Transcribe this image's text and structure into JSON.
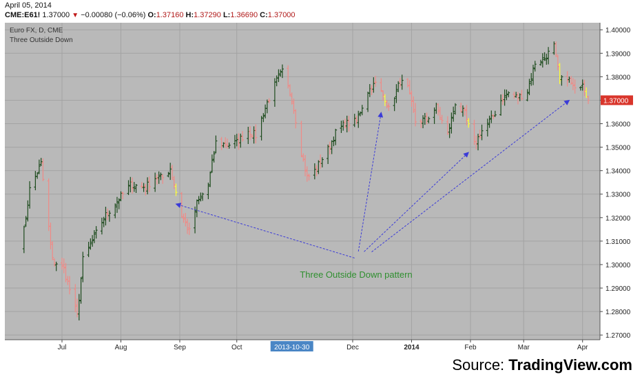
{
  "header": {
    "date": "April 05, 2014",
    "symbol": "CME:E61!",
    "last": "1.37000",
    "change": "−0.00080 (−0.06%)",
    "o_label": "O:",
    "o": "1.37160",
    "h_label": "H:",
    "h": "1.37290",
    "l_label": "L:",
    "l": "1.36690",
    "c_label": "C:",
    "c": "1.37000"
  },
  "colors": {
    "plot_bg": "#b9b9b9",
    "up": "#1c4a1c",
    "down": "#f08a86",
    "pattern": "#ffff33",
    "arrow": "#3b3bd8",
    "annotation": "#2f8f2f",
    "price_tag": "#d9352b",
    "date_tag": "#4a86c5"
  },
  "source": {
    "prefix": "Source: ",
    "brand": "TradingView.com"
  },
  "chart_data": {
    "type": "ohlc",
    "title": "Euro FX, D, CME",
    "subtitle": "Three Outside Down",
    "annotation": "Three Outside Down pattern",
    "last_price_label": "1.37000",
    "highlighted_date": "2013-10-30",
    "ylim": [
      1.268,
      1.403
    ],
    "y_ticks": [
      "1.40000",
      "1.39000",
      "1.38000",
      "1.37000",
      "1.36000",
      "1.35000",
      "1.34000",
      "1.33000",
      "1.32000",
      "1.31000",
      "1.30000",
      "1.29000",
      "1.28000",
      "1.27000"
    ],
    "x_ticks": [
      {
        "label": "Jul",
        "date": "2013-07-01"
      },
      {
        "label": "Aug",
        "date": "2013-08-01"
      },
      {
        "label": "Sep",
        "date": "2013-09-01"
      },
      {
        "label": "Oct",
        "date": "2013-10-01"
      },
      {
        "label": "Dec",
        "date": "2013-12-01"
      },
      {
        "label": "2014",
        "date": "2014-01-01",
        "bold": true
      },
      {
        "label": "Feb",
        "date": "2014-02-01"
      },
      {
        "label": "Mar",
        "date": "2014-03-01"
      },
      {
        "label": "Apr",
        "date": "2014-04-01"
      }
    ],
    "anchors": [
      {
        "date": "2013-06-10",
        "price": 1.309
      },
      {
        "date": "2013-06-14",
        "price": 1.332
      },
      {
        "date": "2013-06-20",
        "price": 1.343
      },
      {
        "date": "2013-06-26",
        "price": 1.302
      },
      {
        "date": "2013-07-02",
        "price": 1.298
      },
      {
        "date": "2013-07-09",
        "price": 1.278
      },
      {
        "date": "2013-07-12",
        "price": 1.302
      },
      {
        "date": "2013-07-17",
        "price": 1.31
      },
      {
        "date": "2013-07-23",
        "price": 1.32
      },
      {
        "date": "2013-07-31",
        "price": 1.328
      },
      {
        "date": "2013-08-06",
        "price": 1.334
      },
      {
        "date": "2013-08-14",
        "price": 1.333
      },
      {
        "date": "2013-08-19",
        "price": 1.337
      },
      {
        "date": "2013-08-23",
        "price": 1.337
      },
      {
        "date": "2013-08-27",
        "price": 1.341
      },
      {
        "date": "2013-09-02",
        "price": 1.321
      },
      {
        "date": "2013-09-06",
        "price": 1.314
      },
      {
        "date": "2013-09-10",
        "price": 1.326
      },
      {
        "date": "2013-09-16",
        "price": 1.334
      },
      {
        "date": "2013-09-20",
        "price": 1.352
      },
      {
        "date": "2013-09-26",
        "price": 1.351
      },
      {
        "date": "2013-10-01",
        "price": 1.352
      },
      {
        "date": "2013-10-07",
        "price": 1.357
      },
      {
        "date": "2013-10-11",
        "price": 1.355
      },
      {
        "date": "2013-10-17",
        "price": 1.369
      },
      {
        "date": "2013-10-23",
        "price": 1.38
      },
      {
        "date": "2013-10-25",
        "price": 1.382
      },
      {
        "date": "2013-10-30",
        "price": 1.371
      },
      {
        "date": "2013-11-04",
        "price": 1.348
      },
      {
        "date": "2013-11-07",
        "price": 1.337
      },
      {
        "date": "2013-11-11",
        "price": 1.34
      },
      {
        "date": "2013-11-18",
        "price": 1.349
      },
      {
        "date": "2013-11-22",
        "price": 1.356
      },
      {
        "date": "2013-11-27",
        "price": 1.36
      },
      {
        "date": "2013-12-03",
        "price": 1.361
      },
      {
        "date": "2013-12-09",
        "price": 1.374
      },
      {
        "date": "2013-12-13",
        "price": 1.377
      },
      {
        "date": "2013-12-18",
        "price": 1.371
      },
      {
        "date": "2013-12-20",
        "price": 1.366
      },
      {
        "date": "2013-12-26",
        "price": 1.378
      },
      {
        "date": "2013-12-30",
        "price": 1.375
      },
      {
        "date": "2014-01-03",
        "price": 1.361
      },
      {
        "date": "2014-01-09",
        "price": 1.362
      },
      {
        "date": "2014-01-14",
        "price": 1.367
      },
      {
        "date": "2014-01-20",
        "price": 1.355
      },
      {
        "date": "2014-01-24",
        "price": 1.369
      },
      {
        "date": "2014-01-29",
        "price": 1.364
      },
      {
        "date": "2014-02-03",
        "price": 1.351
      },
      {
        "date": "2014-02-07",
        "price": 1.357
      },
      {
        "date": "2014-02-13",
        "price": 1.363
      },
      {
        "date": "2014-02-17",
        "price": 1.37
      },
      {
        "date": "2014-02-21",
        "price": 1.373
      },
      {
        "date": "2014-02-26",
        "price": 1.371
      },
      {
        "date": "2014-03-03",
        "price": 1.374
      },
      {
        "date": "2014-03-07",
        "price": 1.386
      },
      {
        "date": "2014-03-12",
        "price": 1.388
      },
      {
        "date": "2014-03-17",
        "price": 1.393
      },
      {
        "date": "2014-03-20",
        "price": 1.378
      },
      {
        "date": "2014-03-24",
        "price": 1.38
      },
      {
        "date": "2014-03-28",
        "price": 1.374
      },
      {
        "date": "2014-04-01",
        "price": 1.378
      },
      {
        "date": "2014-04-04",
        "price": 1.37
      }
    ],
    "pattern_bars": [
      "2013-08-30",
      "2013-12-18",
      "2014-01-31",
      "2014-03-20",
      "2014-04-03"
    ],
    "arrows": [
      {
        "from": {
          "date": "2013-12-02",
          "price": 1.3028
        },
        "to": {
          "date": "2013-08-30",
          "price": 1.3258
        }
      },
      {
        "from": {
          "date": "2013-12-04",
          "price": 1.3056
        },
        "to": {
          "date": "2013-12-16",
          "price": 1.3648
        }
      },
      {
        "from": {
          "date": "2013-12-07",
          "price": 1.3055
        },
        "to": {
          "date": "2014-01-31",
          "price": 1.3478
        }
      },
      {
        "from": {
          "date": "2013-12-11",
          "price": 1.3054
        },
        "to": {
          "date": "2014-03-25",
          "price": 1.37
        }
      }
    ]
  }
}
